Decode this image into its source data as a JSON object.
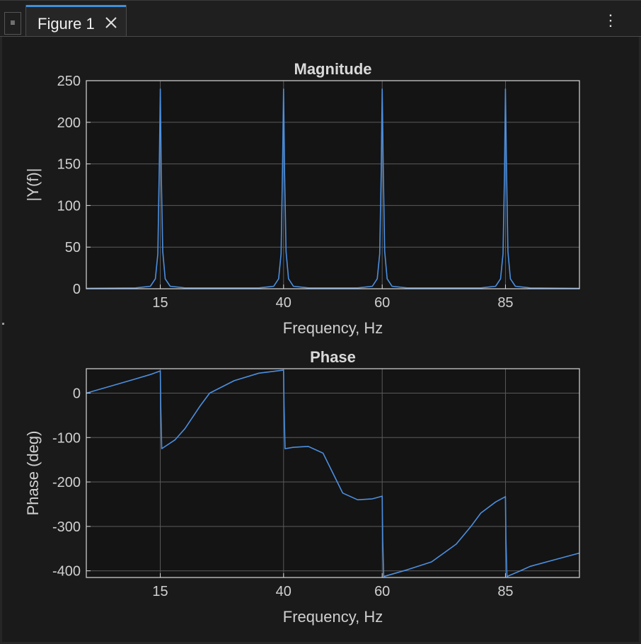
{
  "window": {
    "tab_title": "Figure 1",
    "menu_icon": "hamburger-icon",
    "close_icon": "close-icon",
    "more_icon": "kebab-icon"
  },
  "colors": {
    "line": "#4c8fe0",
    "axes_bg": "#141414",
    "grid": "#5a5a5a",
    "frame": "#d8d8d8"
  },
  "chart_data": [
    {
      "type": "line",
      "title": "Magnitude",
      "xlabel": "Frequency, Hz",
      "ylabel": "|Y(f)|",
      "xlim": [
        0,
        100
      ],
      "ylim": [
        0,
        250
      ],
      "xticks": [
        15,
        40,
        60,
        85
      ],
      "yticks": [
        0,
        50,
        100,
        150,
        200,
        250
      ],
      "grid": true,
      "series": [
        {
          "x": [
            0,
            10,
            13,
            14,
            14.5,
            14.8,
            15,
            15.2,
            15.5,
            16,
            17,
            20,
            35,
            38,
            39,
            39.5,
            39.8,
            40,
            40.2,
            40.5,
            41,
            42,
            45,
            55,
            58,
            59,
            59.5,
            59.8,
            60,
            60.2,
            60.5,
            61,
            62,
            65,
            80,
            83,
            84,
            84.5,
            84.8,
            85,
            85.2,
            85.5,
            86,
            87,
            90,
            100
          ],
          "y": [
            0.5,
            1,
            3,
            12,
            42,
            150,
            240,
            140,
            45,
            12,
            3,
            1,
            1,
            3,
            12,
            42,
            150,
            240,
            140,
            45,
            12,
            3,
            1,
            1,
            3,
            12,
            42,
            140,
            240,
            150,
            45,
            12,
            3,
            1,
            1,
            3,
            12,
            42,
            140,
            240,
            150,
            45,
            12,
            3,
            1,
            0.5
          ]
        }
      ]
    },
    {
      "type": "line",
      "title": "Phase",
      "xlabel": "Frequency, Hz",
      "ylabel": "Phase (deg)",
      "xlim": [
        0,
        100
      ],
      "ylim": [
        -415,
        55
      ],
      "xticks": [
        15,
        40,
        60,
        85
      ],
      "yticks": [
        -400,
        -300,
        -200,
        -100,
        0
      ],
      "grid": true,
      "series": [
        {
          "x": [
            0,
            5,
            10,
            13,
            15,
            15.1,
            15.3,
            18,
            20,
            23,
            25,
            30,
            35,
            40,
            40.1,
            40.3,
            42,
            45,
            48,
            50,
            52,
            55,
            58,
            60,
            60.1,
            60.3,
            65,
            70,
            75,
            78,
            80,
            83,
            85,
            85.1,
            85.3,
            88,
            90,
            95,
            100
          ],
          "y": [
            0,
            16,
            32,
            42,
            50,
            -30,
            -125,
            -105,
            -80,
            -30,
            0,
            28,
            45,
            52,
            -30,
            -125,
            -122,
            -120,
            -135,
            -180,
            -225,
            -240,
            -238,
            -232,
            -330,
            -413,
            -398,
            -380,
            -340,
            -300,
            -270,
            -245,
            -233,
            -330,
            -413,
            -400,
            -390,
            -375,
            -360
          ]
        }
      ]
    }
  ]
}
